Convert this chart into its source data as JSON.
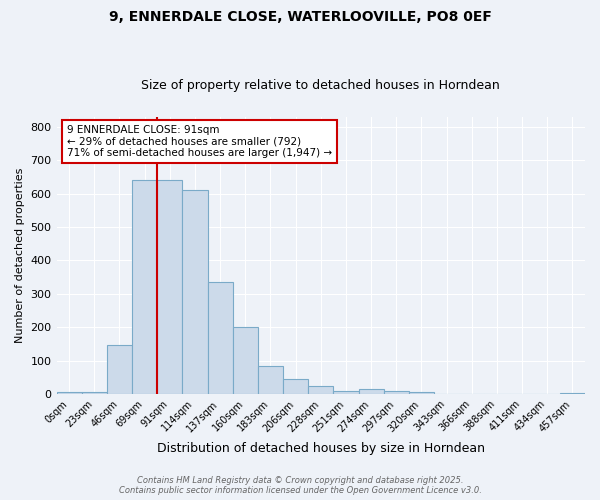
{
  "title": "9, ENNERDALE CLOSE, WATERLOOVILLE, PO8 0EF",
  "subtitle": "Size of property relative to detached houses in Horndean",
  "xlabel": "Distribution of detached houses by size in Horndean",
  "ylabel": "Number of detached properties",
  "bin_labels": [
    "0sqm",
    "23sqm",
    "46sqm",
    "69sqm",
    "91sqm",
    "114sqm",
    "137sqm",
    "160sqm",
    "183sqm",
    "206sqm",
    "228sqm",
    "251sqm",
    "274sqm",
    "297sqm",
    "320sqm",
    "343sqm",
    "366sqm",
    "388sqm",
    "411sqm",
    "434sqm",
    "457sqm"
  ],
  "bar_heights": [
    5,
    5,
    145,
    640,
    640,
    610,
    335,
    200,
    85,
    45,
    25,
    10,
    15,
    10,
    5,
    0,
    0,
    0,
    0,
    0,
    4
  ],
  "bar_color": "#ccdaea",
  "bar_edge_color": "#7aaac8",
  "red_line_bin_index": 3,
  "annotation_text": "9 ENNERDALE CLOSE: 91sqm\n← 29% of detached houses are smaller (792)\n71% of semi-detached houses are larger (1,947) →",
  "annotation_box_color": "#ffffff",
  "annotation_edge_color": "#cc0000",
  "vline_color": "#cc0000",
  "ylim": [
    0,
    830
  ],
  "yticks": [
    0,
    100,
    200,
    300,
    400,
    500,
    600,
    700,
    800
  ],
  "footer": "Contains HM Land Registry data © Crown copyright and database right 2025.\nContains public sector information licensed under the Open Government Licence v3.0.",
  "background_color": "#eef2f8",
  "grid_color": "#ffffff",
  "title_fontsize": 10,
  "subtitle_fontsize": 9
}
